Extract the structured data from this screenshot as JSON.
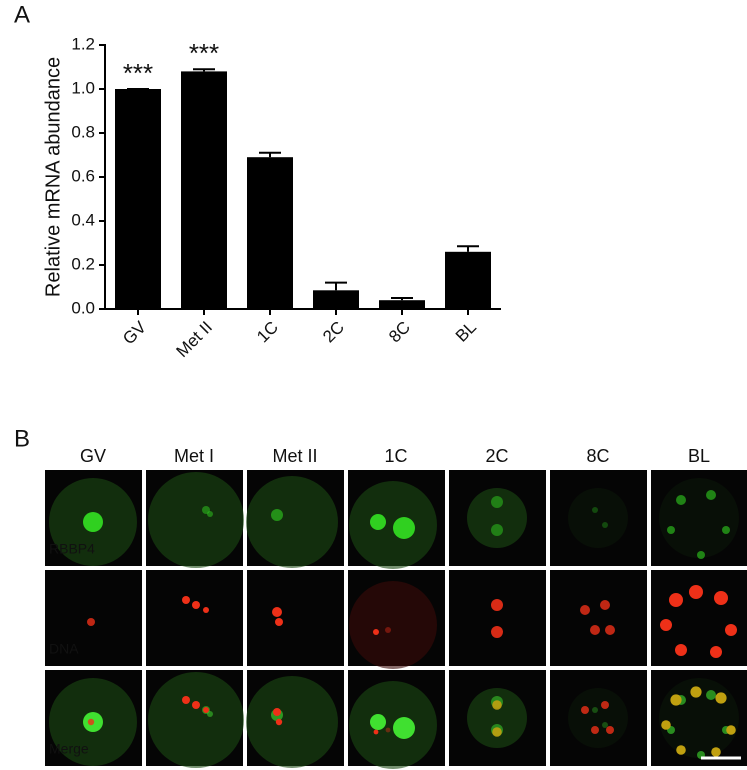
{
  "chart_data": {
    "type": "bar",
    "panel_label": "A",
    "y_label": "Relative mRNA abundance",
    "categories": [
      "GV",
      "Met II",
      "1C",
      "2C",
      "8C",
      "BL"
    ],
    "values": [
      1.0,
      1.08,
      0.69,
      0.085,
      0.04,
      0.26
    ],
    "errors": [
      0.0,
      0.01,
      0.02,
      0.035,
      0.01,
      0.025
    ],
    "annotations": [
      "***",
      "***",
      null,
      null,
      null,
      null
    ],
    "color": "#000000",
    "ylim": [
      0,
      1.2
    ],
    "yticks": [
      {
        "value": 0,
        "label": "0.0"
      },
      0.2,
      0.4,
      0.6,
      0.8,
      {
        "value": 1,
        "label": "1.0"
      },
      1.2
    ]
  },
  "panel_b": {
    "panel_label": "B",
    "columns": [
      "GV",
      "Met I",
      "Met II",
      "1C",
      "2C",
      "8C",
      "BL"
    ],
    "rows": [
      "RBBP4",
      "DNA",
      "Merge"
    ]
  }
}
